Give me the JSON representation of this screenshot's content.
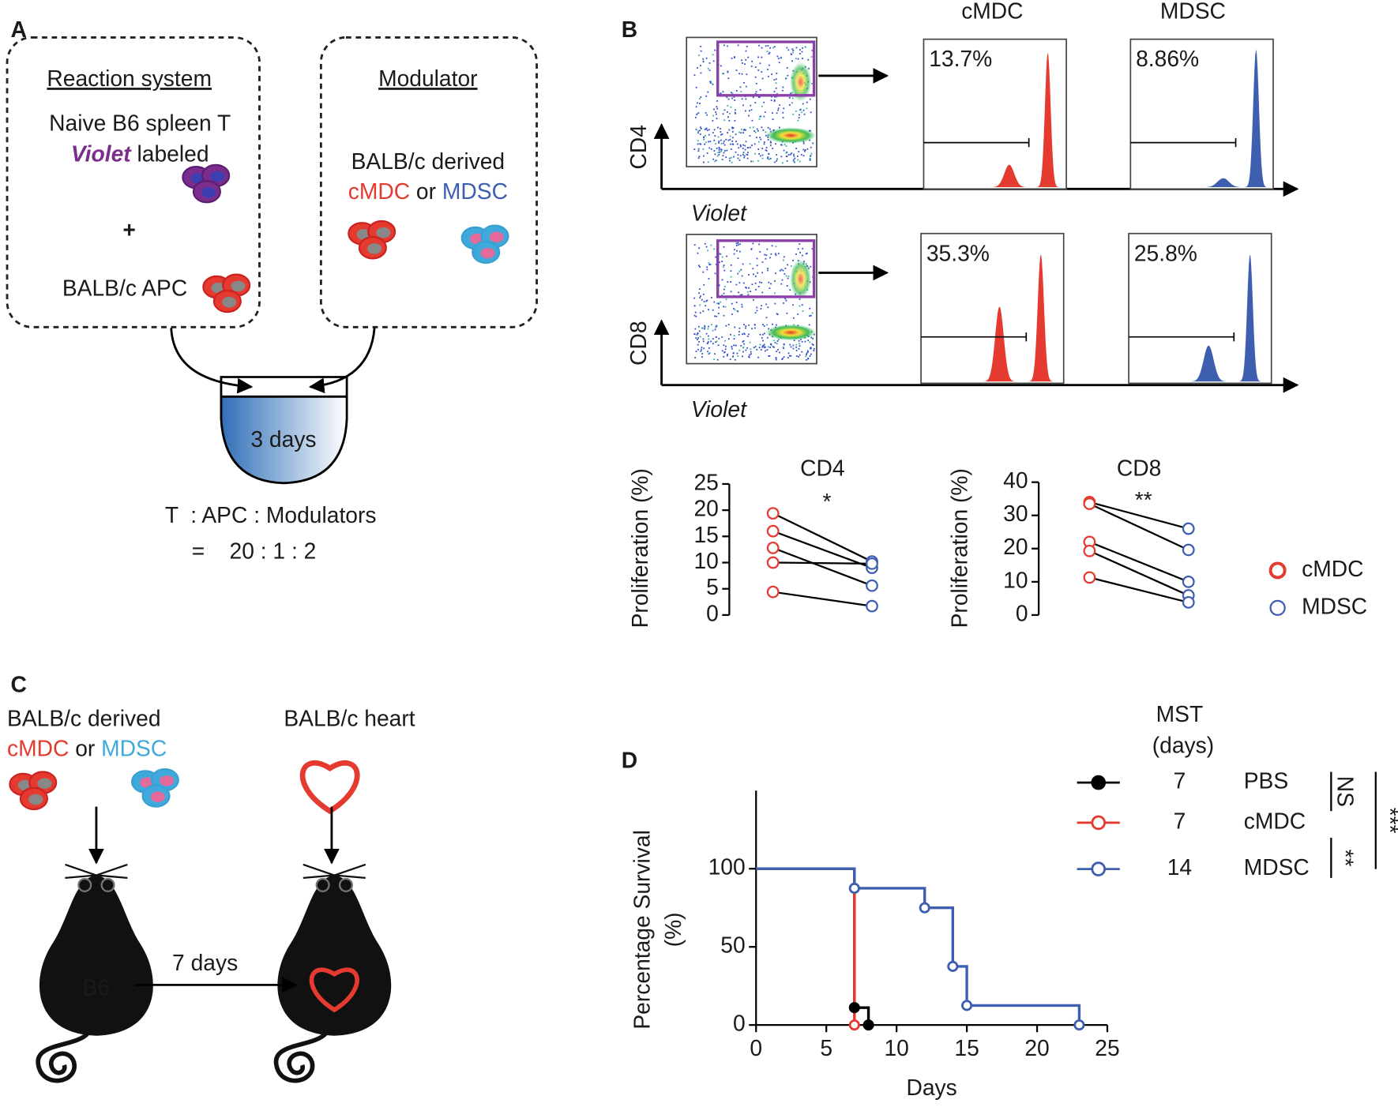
{
  "panel_a": {
    "label": "A",
    "reaction_title": "Reaction system",
    "reaction_line1": "Naive B6 spleen T",
    "violet": "Violet",
    "labeled": " labeled",
    "plus": "+",
    "apc": "BALB/c APC",
    "modulator_title": "Modulator",
    "modulator_line1": "BALB/c derived",
    "cmdc": "cMDC",
    "or": " or ",
    "mdsc": "MDSC",
    "culture": "3 days",
    "ratio_line1": "T  : APC : Modulators",
    "ratio_line2": "=    20 : 1 : 2"
  },
  "panel_b": {
    "label": "B",
    "col1": "cMDC",
    "col2": "MDSC",
    "rows": [
      {
        "marker": "CD4",
        "xlabel": "Violet",
        "percents": [
          "13.7%",
          "8.86%"
        ]
      },
      {
        "marker": "CD8",
        "xlabel": "Violet",
        "percents": [
          "35.3%",
          "25.8%"
        ]
      }
    ]
  },
  "panel_c": {
    "label": "C",
    "left_line1": "BALB/c derived",
    "cmdc": "cMDC",
    "or": " or ",
    "mdsc": "MDSC",
    "right_line1": "BALB/c heart",
    "recipient": "B6",
    "interval": "7 days"
  },
  "panel_d_label": "D",
  "chart_data": [
    {
      "type": "paired",
      "title": "CD4",
      "annotation": "*",
      "ylabel": "Proliferation (%)",
      "ylim": [
        0,
        25
      ],
      "yticks": [
        0,
        5,
        10,
        15,
        20,
        25
      ],
      "series": [
        {
          "color": "#e53a2f",
          "values": [
            19.4,
            16,
            12.8,
            10,
            4.4
          ]
        },
        {
          "color": "#3e5eb0",
          "values": [
            10.2,
            9,
            5.6,
            9.8,
            1.7
          ]
        }
      ]
    },
    {
      "type": "paired",
      "title": "CD8",
      "annotation": "**",
      "ylabel": "Proliferation (%)",
      "ylim": [
        0,
        40
      ],
      "yticks": [
        0,
        10,
        20,
        30,
        40
      ],
      "legend": "right",
      "series": [
        {
          "name": "cMDC",
          "color": "#e53a2f",
          "values": [
            34,
            33.5,
            22,
            19.3,
            11.3
          ]
        },
        {
          "name": "MDSC",
          "color": "#3e5eb0",
          "values": [
            26,
            19.6,
            10,
            5.9,
            3.8
          ]
        }
      ]
    },
    {
      "type": "survival",
      "xlabel": "Days",
      "ylabel": [
        "Percentage Survival",
        "(%)"
      ],
      "xlim": [
        0,
        25
      ],
      "xticks": [
        0,
        5,
        10,
        15,
        20,
        25
      ],
      "ylim": [
        0,
        150
      ],
      "yticks": [
        0,
        50,
        100
      ],
      "legend_title": [
        "MST",
        "(days)"
      ],
      "series": [
        {
          "name": "PBS",
          "color": "#000000",
          "mst": 7,
          "marker": "filled",
          "x": [
            0,
            7,
            8
          ],
          "values": [
            100,
            11.1,
            0
          ]
        },
        {
          "name": "cMDC",
          "color": "#e53a2f",
          "mst": 7,
          "marker": "open",
          "x": [
            0,
            7
          ],
          "values": [
            100,
            0
          ]
        },
        {
          "name": "MDSC",
          "color": "#3e5eb0",
          "mst": 14,
          "marker": "open",
          "x": [
            0,
            7,
            12,
            14,
            15,
            23
          ],
          "values": [
            100,
            87.5,
            75,
            37.5,
            12.5,
            0
          ]
        }
      ],
      "comparisons": [
        {
          "label": "NS"
        },
        {
          "label": "**"
        },
        {
          "label": "***"
        }
      ]
    }
  ]
}
